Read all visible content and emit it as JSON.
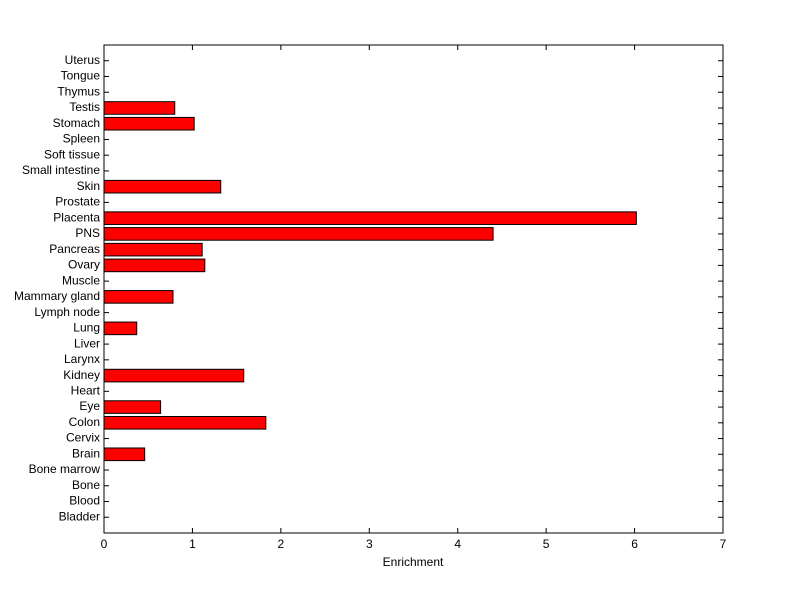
{
  "chart_data": {
    "type": "barh",
    "xlabel": "Enrichment",
    "categories": [
      "Bladder",
      "Blood",
      "Bone",
      "Bone marrow",
      "Brain",
      "Cervix",
      "Colon",
      "Eye",
      "Heart",
      "Kidney",
      "Larynx",
      "Liver",
      "Lung",
      "Lymph node",
      "Mammary gland",
      "Muscle",
      "Ovary",
      "Pancreas",
      "PNS",
      "Placenta",
      "Prostate",
      "Skin",
      "Small intestine",
      "Soft tissue",
      "Spleen",
      "Stomach",
      "Testis",
      "Thymus",
      "Tongue",
      "Uterus"
    ],
    "values": [
      0,
      0,
      0,
      0,
      0.46,
      0,
      1.83,
      0.64,
      0,
      1.58,
      0,
      0,
      0.37,
      0,
      0.78,
      0,
      1.14,
      1.11,
      4.4,
      6.02,
      0,
      1.32,
      0,
      0,
      0,
      1.02,
      0.8,
      0,
      0,
      0
    ],
    "color": "#ff0000",
    "xlim": [
      0,
      7
    ],
    "xticks": [
      0,
      1,
      2,
      3,
      4,
      5,
      6,
      7
    ]
  }
}
